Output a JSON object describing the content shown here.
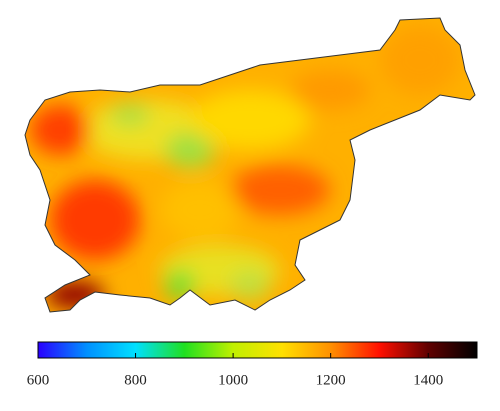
{
  "colorbar": {
    "range": [
      600,
      1500
    ],
    "ticks": [
      600,
      800,
      1000,
      1200,
      1400
    ],
    "colors": [
      "#2a00ff",
      "#0090ff",
      "#00e0ff",
      "#20e020",
      "#c0f000",
      "#ffe000",
      "#ff9000",
      "#ff1000",
      "#600000",
      "#000000"
    ]
  }
}
